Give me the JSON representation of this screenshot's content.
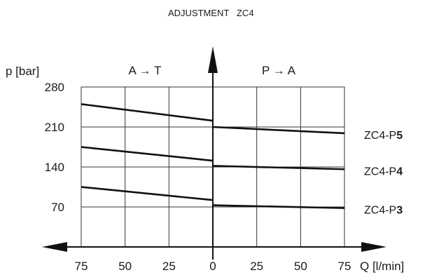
{
  "chart_data": {
    "type": "line",
    "title": "ADJUSTMENT   ZC4",
    "ylabel": "p [bar]",
    "xlabel": "Q [l/min]",
    "region_left": "A → T",
    "region_right": "P → A",
    "x_ticks": [
      "75",
      "50",
      "25",
      "0",
      "25",
      "50",
      "75"
    ],
    "x_ticks_value": [
      -75,
      -50,
      -25,
      0,
      25,
      50,
      75
    ],
    "y_ticks": [
      "280",
      "210",
      "140",
      "70"
    ],
    "y_ticks_value": [
      280,
      210,
      140,
      70
    ],
    "xlim": [
      -75,
      75
    ],
    "ylim": [
      0,
      280
    ],
    "grid": true,
    "series": [
      {
        "name_prefix": "ZC4-P",
        "name_bold": "5",
        "left": {
          "x": [
            -75,
            0
          ],
          "y": [
            250,
            221
          ]
        },
        "right": {
          "x": [
            0,
            75
          ],
          "y": [
            210,
            199
          ]
        }
      },
      {
        "name_prefix": "ZC4-P",
        "name_bold": "4",
        "left": {
          "x": [
            -75,
            0
          ],
          "y": [
            175,
            151
          ]
        },
        "right": {
          "x": [
            0,
            75
          ],
          "y": [
            142,
            136
          ]
        }
      },
      {
        "name_prefix": "ZC4-P",
        "name_bold": "3",
        "left": {
          "x": [
            -75,
            0
          ],
          "y": [
            105,
            82
          ]
        },
        "right": {
          "x": [
            0,
            75
          ],
          "y": [
            73,
            68
          ]
        }
      }
    ]
  }
}
